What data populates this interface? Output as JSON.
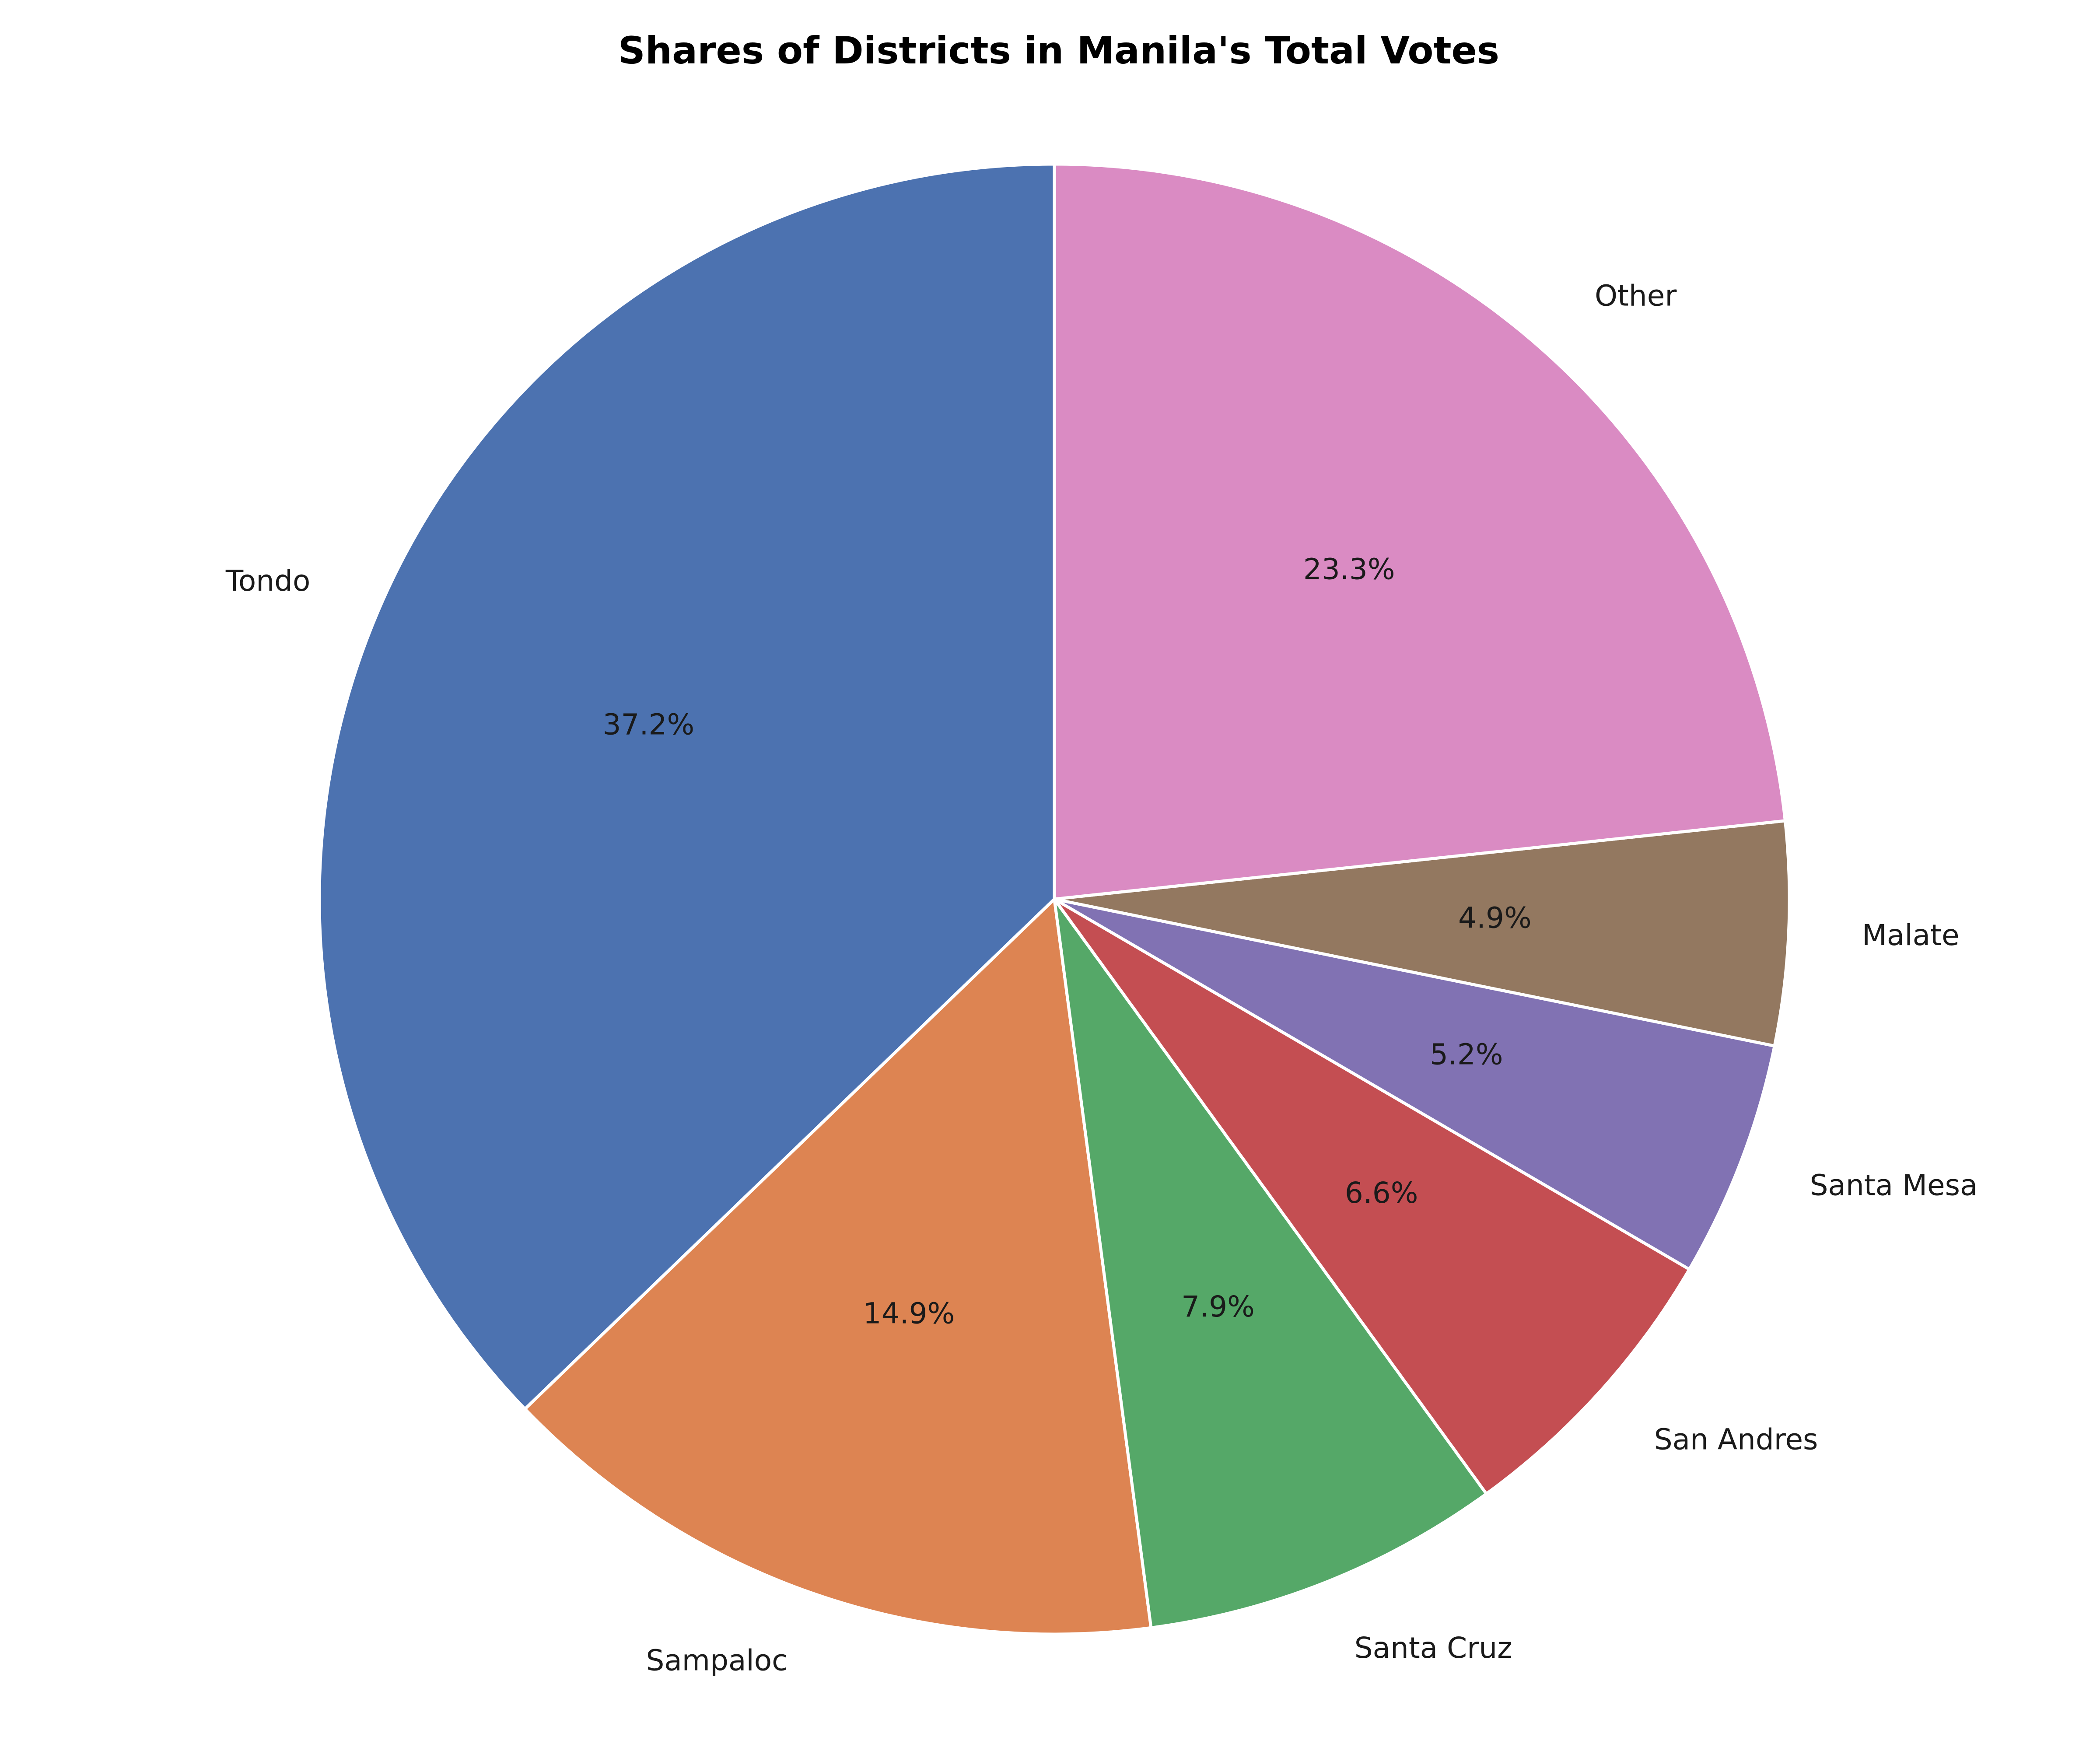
{
  "chart_data": {
    "type": "pie",
    "title": "Shares of Districts in Manila's Total Votes",
    "start_angle_deg": 90,
    "direction": "counterclockwise",
    "slices": [
      {
        "label": "Tondo",
        "value": 37.2,
        "pct_text": "37.2%",
        "color": "#4c72b0"
      },
      {
        "label": "Sampaloc",
        "value": 14.9,
        "pct_text": "14.9%",
        "color": "#dd8452"
      },
      {
        "label": "Santa Cruz",
        "value": 7.9,
        "pct_text": "7.9%",
        "color": "#55a868"
      },
      {
        "label": "San Andres",
        "value": 6.6,
        "pct_text": "6.6%",
        "color": "#c44e52"
      },
      {
        "label": "Santa Mesa",
        "value": 5.2,
        "pct_text": "5.2%",
        "color": "#8172b3"
      },
      {
        "label": "Malate",
        "value": 4.9,
        "pct_text": "4.9%",
        "color": "#937860"
      },
      {
        "label": "Other",
        "value": 23.3,
        "pct_text": "23.3%",
        "color": "#da8bc3"
      }
    ]
  }
}
